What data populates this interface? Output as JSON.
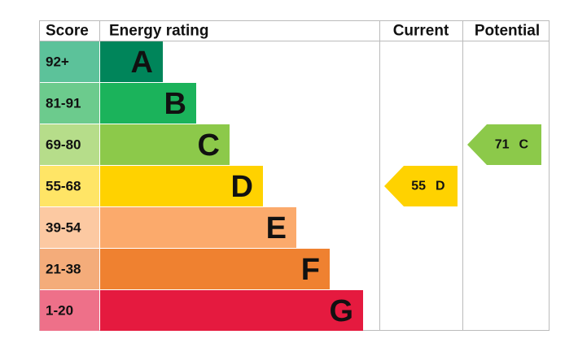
{
  "header": {
    "score": "Score",
    "rating": "Energy rating",
    "current": "Current",
    "potential": "Potential"
  },
  "bands": [
    {
      "score": "92+",
      "letter": "A",
      "color": "#00855a",
      "tint": "#5cc29a"
    },
    {
      "score": "81-91",
      "letter": "B",
      "color": "#1bb35b",
      "tint": "#6ccb8d"
    },
    {
      "score": "69-80",
      "letter": "C",
      "color": "#8cc94a",
      "tint": "#b6dd8a"
    },
    {
      "score": "55-68",
      "letter": "D",
      "color": "#ffd200",
      "tint": "#ffe566"
    },
    {
      "score": "39-54",
      "letter": "E",
      "color": "#fbaa6c",
      "tint": "#fcc9a2"
    },
    {
      "score": "21-38",
      "letter": "F",
      "color": "#ef8130",
      "tint": "#f4ac7a"
    },
    {
      "score": "1-20",
      "letter": "G",
      "color": "#e51a3f",
      "tint": "#ee7089"
    }
  ],
  "current": {
    "score": 55,
    "letter": "D",
    "color": "#ffd200"
  },
  "potential": {
    "score": 71,
    "letter": "C",
    "color": "#8cc94a"
  }
}
